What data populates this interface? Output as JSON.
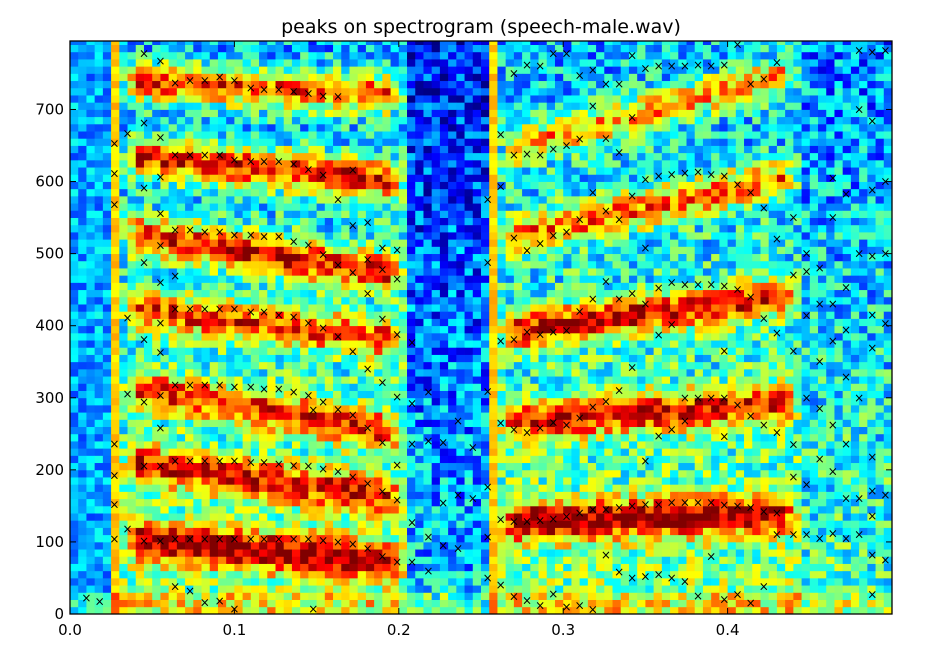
{
  "chart_data": {
    "type": "heatmap",
    "title": "peaks on spectrogram (speech-male.wav)",
    "xlabel": "",
    "ylabel": "",
    "xlim": [
      0.0,
      0.5
    ],
    "ylim": [
      0,
      795
    ],
    "x_ticks": [
      0.0,
      0.1,
      0.2,
      0.3,
      0.4
    ],
    "x_tick_labels": [
      "0.0",
      "0.1",
      "0.2",
      "0.3",
      "0.4"
    ],
    "y_ticks": [
      0,
      100,
      200,
      300,
      400,
      500,
      600,
      700
    ],
    "y_tick_labels": [
      "0",
      "100",
      "200",
      "300",
      "400",
      "500",
      "600",
      "700"
    ],
    "grid": false,
    "colormap": "jet",
    "frame_step": 0.005,
    "bin_step": 10,
    "intensity_scale": [
      0,
      1
    ],
    "voiced_segments": [
      {
        "start": 0.03,
        "end": 0.205,
        "f0": 106,
        "formants": [
          {
            "f": 106,
            "f_end": 70,
            "a": 0.97
          },
          {
            "f": 212,
            "f_end": 160,
            "a": 0.8
          },
          {
            "f": 318,
            "f_end": 250,
            "a": 0.78
          },
          {
            "f": 425,
            "f_end": 380,
            "a": 0.8
          },
          {
            "f": 530,
            "f_end": 470,
            "a": 0.93
          },
          {
            "f": 638,
            "f_end": 600,
            "a": 0.97
          },
          {
            "f": 740,
            "f_end": 720,
            "a": 0.9
          }
        ]
      },
      {
        "start": 0.26,
        "end": 0.445,
        "f0": 128,
        "formants": [
          {
            "f": 128,
            "f_end": 140,
            "a": 0.95
          },
          {
            "f": 265,
            "f_end": 295,
            "a": 0.85
          },
          {
            "f": 390,
            "f_end": 445,
            "a": 0.92
          },
          {
            "f": 520,
            "f_end": 610,
            "a": 0.75
          },
          {
            "f": 640,
            "f_end": 755,
            "a": 0.7
          }
        ]
      }
    ],
    "peak_marker": "×",
    "peaks": [
      [
        0.01,
        22
      ],
      [
        0.018,
        17
      ],
      [
        0.027,
        104
      ],
      [
        0.027,
        152
      ],
      [
        0.027,
        192
      ],
      [
        0.027,
        236
      ],
      [
        0.027,
        568
      ],
      [
        0.027,
        611
      ],
      [
        0.027,
        653
      ],
      [
        0.035,
        118
      ],
      [
        0.035,
        305
      ],
      [
        0.035,
        411
      ],
      [
        0.035,
        667
      ],
      [
        0.045,
        101
      ],
      [
        0.045,
        205
      ],
      [
        0.045,
        294
      ],
      [
        0.045,
        381
      ],
      [
        0.045,
        488
      ],
      [
        0.045,
        591
      ],
      [
        0.045,
        681
      ],
      [
        0.045,
        778
      ],
      [
        0.055,
        101
      ],
      [
        0.055,
        205
      ],
      [
        0.055,
        258
      ],
      [
        0.055,
        303
      ],
      [
        0.055,
        363
      ],
      [
        0.055,
        404
      ],
      [
        0.055,
        460
      ],
      [
        0.055,
        511
      ],
      [
        0.055,
        556
      ],
      [
        0.055,
        606
      ],
      [
        0.055,
        661
      ],
      [
        0.055,
        767
      ],
      [
        0.064,
        104
      ],
      [
        0.064,
        212
      ],
      [
        0.064,
        318
      ],
      [
        0.064,
        423
      ],
      [
        0.064,
        533
      ],
      [
        0.064,
        637
      ],
      [
        0.064,
        737
      ],
      [
        0.064,
        38
      ],
      [
        0.064,
        469
      ],
      [
        0.073,
        104
      ],
      [
        0.073,
        212
      ],
      [
        0.073,
        318
      ],
      [
        0.073,
        423
      ],
      [
        0.073,
        533
      ],
      [
        0.073,
        637
      ],
      [
        0.073,
        740
      ],
      [
        0.073,
        32
      ],
      [
        0.082,
        104
      ],
      [
        0.082,
        212
      ],
      [
        0.082,
        318
      ],
      [
        0.082,
        423
      ],
      [
        0.082,
        530
      ],
      [
        0.082,
        637
      ],
      [
        0.082,
        740
      ],
      [
        0.082,
        16
      ],
      [
        0.091,
        104
      ],
      [
        0.091,
        212
      ],
      [
        0.091,
        318
      ],
      [
        0.091,
        423
      ],
      [
        0.091,
        530
      ],
      [
        0.091,
        637
      ],
      [
        0.091,
        745
      ],
      [
        0.091,
        18
      ],
      [
        0.1,
        104
      ],
      [
        0.1,
        212
      ],
      [
        0.1,
        315
      ],
      [
        0.1,
        423
      ],
      [
        0.1,
        526
      ],
      [
        0.1,
        630
      ],
      [
        0.1,
        740
      ],
      [
        0.1,
        7
      ],
      [
        0.11,
        104
      ],
      [
        0.11,
        210
      ],
      [
        0.11,
        315
      ],
      [
        0.11,
        419
      ],
      [
        0.11,
        526
      ],
      [
        0.11,
        628
      ],
      [
        0.11,
        730
      ],
      [
        0.118,
        104
      ],
      [
        0.118,
        210
      ],
      [
        0.118,
        312
      ],
      [
        0.118,
        419
      ],
      [
        0.118,
        524
      ],
      [
        0.118,
        628
      ],
      [
        0.118,
        728
      ],
      [
        0.127,
        104
      ],
      [
        0.127,
        208
      ],
      [
        0.127,
        312
      ],
      [
        0.127,
        415
      ],
      [
        0.127,
        524
      ],
      [
        0.127,
        628
      ],
      [
        0.127,
        728
      ],
      [
        0.136,
        104
      ],
      [
        0.136,
        206
      ],
      [
        0.136,
        308
      ],
      [
        0.136,
        412
      ],
      [
        0.136,
        517
      ],
      [
        0.136,
        624
      ],
      [
        0.136,
        725
      ],
      [
        0.145,
        104
      ],
      [
        0.145,
        205
      ],
      [
        0.145,
        303
      ],
      [
        0.145,
        404
      ],
      [
        0.145,
        512
      ],
      [
        0.145,
        617
      ],
      [
        0.145,
        722
      ],
      [
        0.154,
        102
      ],
      [
        0.154,
        201
      ],
      [
        0.154,
        294
      ],
      [
        0.154,
        397
      ],
      [
        0.154,
        499
      ],
      [
        0.154,
        609
      ],
      [
        0.154,
        719
      ],
      [
        0.148,
        7
      ],
      [
        0.148,
        283
      ],
      [
        0.163,
        100
      ],
      [
        0.163,
        198
      ],
      [
        0.163,
        284
      ],
      [
        0.163,
        385
      ],
      [
        0.163,
        484
      ],
      [
        0.163,
        575
      ],
      [
        0.163,
        718
      ],
      [
        0.172,
        97
      ],
      [
        0.172,
        190
      ],
      [
        0.172,
        276
      ],
      [
        0.172,
        364
      ],
      [
        0.172,
        474
      ],
      [
        0.172,
        539
      ],
      [
        0.172,
        616
      ],
      [
        0.181,
        91
      ],
      [
        0.181,
        181
      ],
      [
        0.181,
        258
      ],
      [
        0.181,
        340
      ],
      [
        0.181,
        445
      ],
      [
        0.181,
        492
      ],
      [
        0.181,
        543
      ],
      [
        0.19,
        80
      ],
      [
        0.19,
        170
      ],
      [
        0.19,
        238
      ],
      [
        0.19,
        321
      ],
      [
        0.19,
        409
      ],
      [
        0.19,
        478
      ],
      [
        0.19,
        508
      ],
      [
        0.199,
        72
      ],
      [
        0.199,
        158
      ],
      [
        0.199,
        207
      ],
      [
        0.199,
        301
      ],
      [
        0.199,
        388
      ],
      [
        0.199,
        465
      ],
      [
        0.199,
        505
      ],
      [
        0.208,
        72
      ],
      [
        0.208,
        127
      ],
      [
        0.208,
        236
      ],
      [
        0.208,
        292
      ],
      [
        0.208,
        377
      ],
      [
        0.218,
        60
      ],
      [
        0.218,
        107
      ],
      [
        0.218,
        240
      ],
      [
        0.218,
        308
      ],
      [
        0.227,
        95
      ],
      [
        0.227,
        154
      ],
      [
        0.227,
        238
      ],
      [
        0.236,
        91
      ],
      [
        0.236,
        165
      ],
      [
        0.236,
        268
      ],
      [
        0.245,
        160
      ],
      [
        0.245,
        231
      ],
      [
        0.254,
        50
      ],
      [
        0.254,
        107
      ],
      [
        0.254,
        176
      ],
      [
        0.254,
        309
      ],
      [
        0.254,
        488
      ],
      [
        0.254,
        575
      ],
      [
        0.262,
        40
      ],
      [
        0.262,
        131
      ],
      [
        0.262,
        265
      ],
      [
        0.262,
        379
      ],
      [
        0.262,
        593
      ],
      [
        0.262,
        665
      ],
      [
        0.27,
        24
      ],
      [
        0.27,
        128
      ],
      [
        0.27,
        256
      ],
      [
        0.27,
        381
      ],
      [
        0.27,
        522
      ],
      [
        0.27,
        637
      ],
      [
        0.27,
        750
      ],
      [
        0.278,
        19
      ],
      [
        0.278,
        128
      ],
      [
        0.278,
        252
      ],
      [
        0.278,
        391
      ],
      [
        0.278,
        504
      ],
      [
        0.278,
        638
      ],
      [
        0.278,
        762
      ],
      [
        0.286,
        12
      ],
      [
        0.286,
        130
      ],
      [
        0.286,
        258
      ],
      [
        0.286,
        388
      ],
      [
        0.286,
        514
      ],
      [
        0.286,
        637
      ],
      [
        0.286,
        760
      ],
      [
        0.294,
        28
      ],
      [
        0.294,
        132
      ],
      [
        0.294,
        266
      ],
      [
        0.294,
        391
      ],
      [
        0.294,
        525
      ],
      [
        0.294,
        645
      ],
      [
        0.294,
        778
      ],
      [
        0.302,
        10
      ],
      [
        0.302,
        135
      ],
      [
        0.302,
        262
      ],
      [
        0.302,
        393
      ],
      [
        0.302,
        530
      ],
      [
        0.302,
        650
      ],
      [
        0.302,
        778
      ],
      [
        0.31,
        12
      ],
      [
        0.31,
        140
      ],
      [
        0.31,
        272
      ],
      [
        0.31,
        420
      ],
      [
        0.31,
        547
      ],
      [
        0.31,
        659
      ],
      [
        0.31,
        747
      ],
      [
        0.318,
        6
      ],
      [
        0.318,
        145
      ],
      [
        0.318,
        287
      ],
      [
        0.318,
        437
      ],
      [
        0.318,
        585
      ],
      [
        0.318,
        705
      ],
      [
        0.318,
        755
      ],
      [
        0.326,
        82
      ],
      [
        0.326,
        145
      ],
      [
        0.326,
        295
      ],
      [
        0.326,
        461
      ],
      [
        0.326,
        559
      ],
      [
        0.326,
        660
      ],
      [
        0.326,
        735
      ],
      [
        0.334,
        58
      ],
      [
        0.334,
        148
      ],
      [
        0.334,
        310
      ],
      [
        0.334,
        437
      ],
      [
        0.334,
        547
      ],
      [
        0.334,
        640
      ],
      [
        0.334,
        735
      ],
      [
        0.342,
        50
      ],
      [
        0.342,
        150
      ],
      [
        0.342,
        342
      ],
      [
        0.342,
        445
      ],
      [
        0.342,
        580
      ],
      [
        0.342,
        689
      ],
      [
        0.342,
        775
      ],
      [
        0.35,
        52
      ],
      [
        0.35,
        152
      ],
      [
        0.35,
        212
      ],
      [
        0.35,
        430
      ],
      [
        0.35,
        508
      ],
      [
        0.35,
        603
      ],
      [
        0.35,
        757
      ],
      [
        0.358,
        55
      ],
      [
        0.358,
        152
      ],
      [
        0.358,
        247
      ],
      [
        0.358,
        387
      ],
      [
        0.358,
        452
      ],
      [
        0.358,
        608
      ],
      [
        0.358,
        760
      ],
      [
        0.366,
        50
      ],
      [
        0.366,
        155
      ],
      [
        0.366,
        256
      ],
      [
        0.366,
        402
      ],
      [
        0.366,
        460
      ],
      [
        0.366,
        610
      ],
      [
        0.366,
        760
      ],
      [
        0.374,
        45
      ],
      [
        0.374,
        155
      ],
      [
        0.374,
        268
      ],
      [
        0.374,
        300
      ],
      [
        0.374,
        457
      ],
      [
        0.374,
        612
      ],
      [
        0.374,
        760
      ],
      [
        0.382,
        25
      ],
      [
        0.382,
        155
      ],
      [
        0.382,
        300
      ],
      [
        0.382,
        457
      ],
      [
        0.382,
        613
      ],
      [
        0.382,
        762
      ],
      [
        0.39,
        80
      ],
      [
        0.39,
        155
      ],
      [
        0.39,
        300
      ],
      [
        0.39,
        457
      ],
      [
        0.39,
        610
      ],
      [
        0.39,
        760
      ],
      [
        0.398,
        20
      ],
      [
        0.398,
        151
      ],
      [
        0.398,
        246
      ],
      [
        0.398,
        300
      ],
      [
        0.398,
        365
      ],
      [
        0.398,
        455
      ],
      [
        0.398,
        608
      ],
      [
        0.398,
        762
      ],
      [
        0.406,
        27
      ],
      [
        0.406,
        150
      ],
      [
        0.406,
        290
      ],
      [
        0.406,
        450
      ],
      [
        0.406,
        596
      ],
      [
        0.406,
        790
      ],
      [
        0.414,
        15
      ],
      [
        0.414,
        148
      ],
      [
        0.414,
        275
      ],
      [
        0.414,
        440
      ],
      [
        0.414,
        585
      ],
      [
        0.414,
        735
      ],
      [
        0.422,
        38
      ],
      [
        0.422,
        142
      ],
      [
        0.422,
        262
      ],
      [
        0.422,
        410
      ],
      [
        0.422,
        563
      ],
      [
        0.422,
        742
      ],
      [
        0.43,
        110
      ],
      [
        0.43,
        140
      ],
      [
        0.43,
        252
      ],
      [
        0.43,
        390
      ],
      [
        0.43,
        520
      ],
      [
        0.43,
        765
      ],
      [
        0.44,
        110
      ],
      [
        0.44,
        190
      ],
      [
        0.44,
        235
      ],
      [
        0.44,
        365
      ],
      [
        0.44,
        470
      ],
      [
        0.44,
        550
      ],
      [
        0.448,
        110
      ],
      [
        0.448,
        180
      ],
      [
        0.448,
        300
      ],
      [
        0.448,
        414
      ],
      [
        0.448,
        475
      ],
      [
        0.448,
        500
      ],
      [
        0.456,
        105
      ],
      [
        0.456,
        215
      ],
      [
        0.456,
        285
      ],
      [
        0.456,
        350
      ],
      [
        0.456,
        430
      ],
      [
        0.456,
        480
      ],
      [
        0.464,
        112
      ],
      [
        0.464,
        198
      ],
      [
        0.464,
        262
      ],
      [
        0.464,
        379
      ],
      [
        0.464,
        430
      ],
      [
        0.464,
        550
      ],
      [
        0.464,
        605
      ],
      [
        0.472,
        105
      ],
      [
        0.472,
        160
      ],
      [
        0.472,
        236
      ],
      [
        0.472,
        329
      ],
      [
        0.472,
        394
      ],
      [
        0.472,
        453
      ],
      [
        0.472,
        583
      ],
      [
        0.48,
        110
      ],
      [
        0.48,
        160
      ],
      [
        0.48,
        300
      ],
      [
        0.48,
        500
      ],
      [
        0.48,
        700
      ],
      [
        0.48,
        782
      ],
      [
        0.488,
        27
      ],
      [
        0.488,
        82
      ],
      [
        0.488,
        136
      ],
      [
        0.488,
        171
      ],
      [
        0.488,
        218
      ],
      [
        0.488,
        369
      ],
      [
        0.488,
        415
      ],
      [
        0.488,
        497
      ],
      [
        0.488,
        588
      ],
      [
        0.488,
        684
      ],
      [
        0.488,
        780
      ],
      [
        0.496,
        75
      ],
      [
        0.496,
        165
      ],
      [
        0.496,
        403
      ],
      [
        0.496,
        500
      ],
      [
        0.496,
        600
      ],
      [
        0.496,
        782
      ]
    ]
  }
}
